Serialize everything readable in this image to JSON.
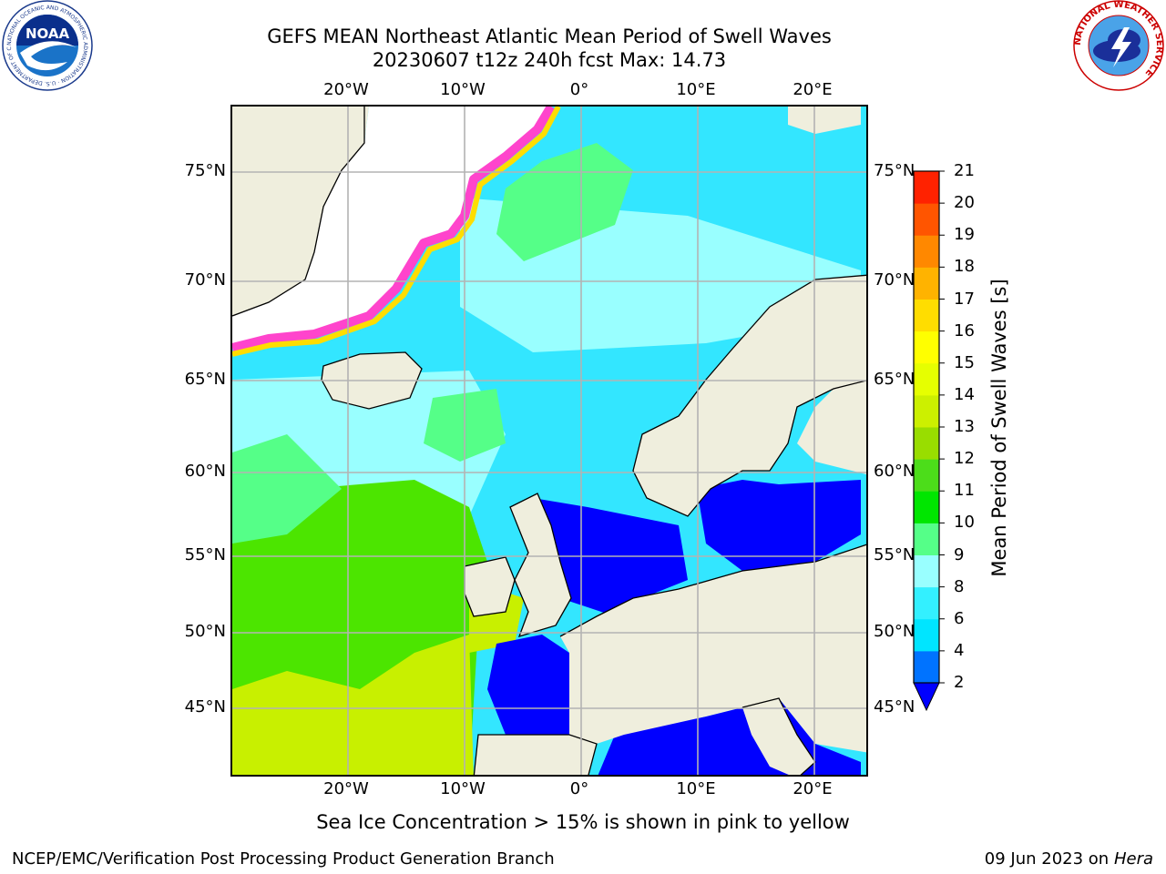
{
  "title_line1": "GEFS MEAN Northeast Atlantic Mean Period of Swell Waves",
  "title_line2": "20230607 t12z 240h fcst   Max: 14.73",
  "logos": {
    "noaa": {
      "text": "NOAA",
      "ring_text": "NATIONAL OCEANIC AND ATMOSPHERIC ADMINISTRATION · U.S. DEPARTMENT OF COMMERCE"
    },
    "nws": {
      "ring_text": "NATIONAL WEATHER SERVICE"
    }
  },
  "lon_ticks": [
    "20°W",
    "10°W",
    "0°",
    "10°E",
    "20°E"
  ],
  "lat_ticks": [
    "75°N",
    "70°N",
    "65°N",
    "60°N",
    "55°N",
    "50°N",
    "45°N"
  ],
  "colorbar": {
    "label": "Mean Period of Swell Waves [s]",
    "levels": [
      "2",
      "4",
      "6",
      "8",
      "9",
      "10",
      "11",
      "12",
      "13",
      "14",
      "15",
      "16",
      "17",
      "18",
      "19",
      "20",
      "21"
    ],
    "colors": [
      "#0073ff",
      "#00e5ff",
      "#33f0ff",
      "#99ffff",
      "#55ff88",
      "#00e600",
      "#4cdd1a",
      "#99dd00",
      "#ccf000",
      "#e6ff00",
      "#ffff00",
      "#ffdd00",
      "#ffb300",
      "#ff8800",
      "#ff5500",
      "#ff2200"
    ],
    "under_color": "#0000ff"
  },
  "map_colors": {
    "land": "#efeedd",
    "ocean_base": "#33e6ff",
    "sheltered": "#0000ff",
    "long_swell": "#4ce500",
    "very_long_swell": "#c8f000",
    "ice": "#ffffff",
    "ice_edge": "#ff44cc",
    "grid": "#b3b3b3"
  },
  "note": "Sea Ice Concentration > 15% is shown in pink to yellow",
  "footer_left": "NCEP/EMC/Verification Post Processing Product Generation Branch",
  "footer_right_date": "09 Jun 2023 on",
  "footer_right_host": "Hera"
}
